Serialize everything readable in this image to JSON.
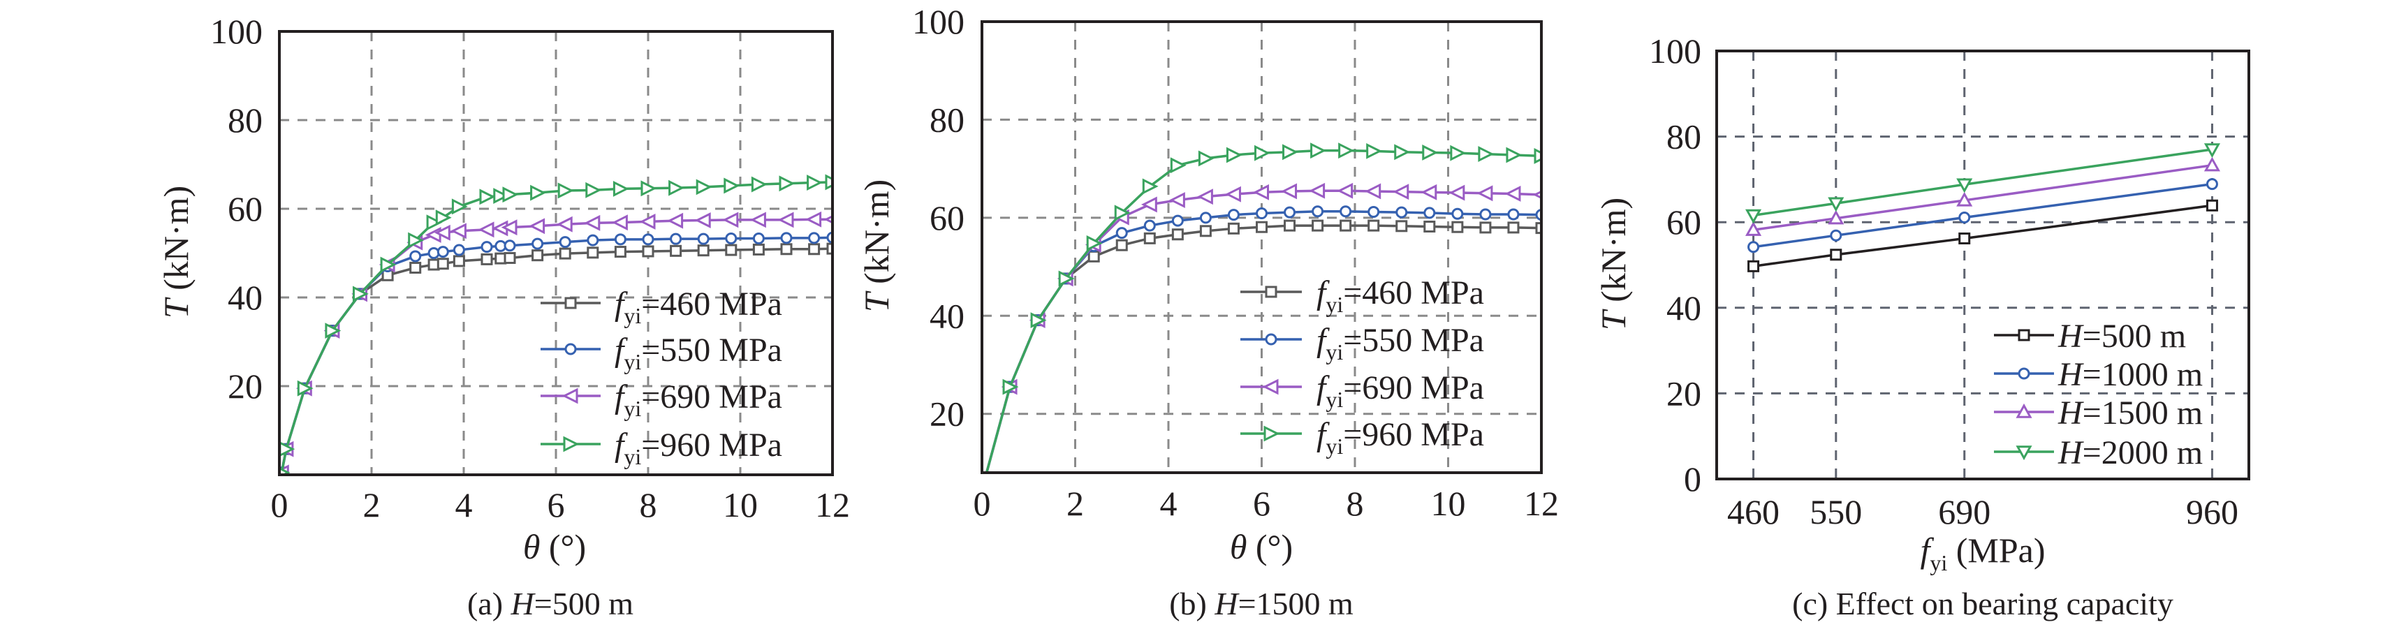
{
  "chart_data": [
    {
      "type": "line",
      "panel": "a",
      "caption": {
        "prefix": "(a) ",
        "var": "H",
        "rest": "=500 m"
      },
      "xlabel": {
        "var": "θ",
        "rest": " (°)"
      },
      "ylabel": {
        "var": "T",
        "rest": " (kN·m)"
      },
      "xlim": [
        0,
        12
      ],
      "ylim": [
        0,
        100
      ],
      "xticks": [
        0,
        2,
        4,
        6,
        8,
        10,
        12
      ],
      "yticks": [
        20,
        40,
        60,
        80,
        100
      ],
      "grid": true,
      "legend_position": "lower-right",
      "x": [
        0.05,
        0.15,
        0.55,
        1.15,
        1.75,
        2.35,
        2.95,
        3.35,
        3.55,
        3.9,
        4.5,
        4.8,
        5.0,
        5.6,
        6.2,
        6.8,
        7.4,
        8.0,
        8.6,
        9.2,
        9.8,
        10.4,
        11.0,
        11.6,
        12
      ],
      "series": [
        {
          "name": {
            "var": "f",
            "sub": "yi",
            "rest": "=460 MPa"
          },
          "color": "#5a5a5a",
          "marker": "square",
          "values": [
            0.5,
            5.8,
            19.5,
            32.5,
            40.8,
            45.0,
            46.7,
            47.4,
            47.6,
            48.2,
            48.6,
            48.8,
            48.9,
            49.5,
            49.9,
            50.1,
            50.3,
            50.4,
            50.5,
            50.6,
            50.7,
            50.8,
            50.9,
            50.9,
            51.0
          ]
        },
        {
          "name": {
            "var": "f",
            "sub": "yi",
            "rest": "=550 MPa"
          },
          "color": "#3561b0",
          "marker": "circle",
          "values": [
            0.5,
            5.8,
            19.5,
            32.5,
            40.8,
            47.0,
            49.3,
            50.0,
            50.3,
            50.7,
            51.4,
            51.6,
            51.7,
            52.1,
            52.5,
            52.9,
            53.1,
            53.1,
            53.2,
            53.2,
            53.3,
            53.3,
            53.4,
            53.4,
            53.5
          ]
        },
        {
          "name": {
            "var": "f",
            "sub": "yi",
            "rest": "=690 MPa"
          },
          "color": "#9a5cc4",
          "marker": "triangle-left",
          "values": [
            0.5,
            5.8,
            19.5,
            32.5,
            40.8,
            47.4,
            52.4,
            54.1,
            54.6,
            55.0,
            55.3,
            55.6,
            55.8,
            56.1,
            56.5,
            56.8,
            56.9,
            57.1,
            57.3,
            57.4,
            57.5,
            57.5,
            57.5,
            57.6,
            57.6
          ]
        },
        {
          "name": {
            "var": "f",
            "sub": "yi",
            "rest": "=960 MPa"
          },
          "color": "#3aa35e",
          "marker": "triangle-right",
          "values": [
            0.5,
            5.8,
            19.5,
            32.5,
            40.8,
            47.4,
            52.9,
            56.9,
            58.0,
            60.5,
            62.7,
            62.9,
            63.2,
            63.6,
            64.1,
            64.2,
            64.5,
            64.6,
            64.7,
            64.9,
            65.2,
            65.5,
            65.7,
            65.9,
            66.0
          ]
        }
      ]
    },
    {
      "type": "line",
      "panel": "b",
      "caption": {
        "prefix": "(b) ",
        "var": "H",
        "rest": "=1500 m"
      },
      "xlabel": {
        "var": "θ",
        "rest": " (°)"
      },
      "ylabel": {
        "var": "T",
        "rest": " (kN·m)"
      },
      "xlim": [
        0,
        12
      ],
      "ylim": [
        8,
        100
      ],
      "xticks": [
        0,
        2,
        4,
        6,
        8,
        10,
        12
      ],
      "yticks": [
        20,
        40,
        60,
        80,
        100
      ],
      "grid": true,
      "legend_position": "lower-right",
      "x": [
        0.1,
        0.6,
        1.2,
        1.8,
        2.4,
        3.0,
        3.6,
        4.2,
        4.8,
        5.4,
        6.0,
        6.6,
        7.2,
        7.8,
        8.4,
        9.0,
        9.6,
        10.2,
        10.8,
        11.4,
        12
      ],
      "series": [
        {
          "name": {
            "var": "f",
            "sub": "yi",
            "rest": "=460 MPa"
          },
          "color": "#5a5a5a",
          "marker": "square",
          "values": [
            8,
            25.5,
            39.1,
            47.6,
            52.1,
            54.4,
            55.8,
            56.6,
            57.3,
            57.8,
            58.1,
            58.4,
            58.4,
            58.4,
            58.4,
            58.3,
            58.2,
            58.1,
            58.0,
            58.0,
            57.9
          ]
        },
        {
          "name": {
            "var": "f",
            "sub": "yi",
            "rest": "=550 MPa"
          },
          "color": "#3561b0",
          "marker": "circle",
          "values": [
            8,
            25.5,
            39.1,
            47.6,
            54.2,
            56.9,
            58.4,
            59.4,
            60.0,
            60.6,
            60.9,
            61.1,
            61.3,
            61.3,
            61.2,
            61.1,
            61.0,
            60.8,
            60.7,
            60.7,
            60.6
          ]
        },
        {
          "name": {
            "var": "f",
            "sub": "yi",
            "rest": "=690 MPa"
          },
          "color": "#9a5cc4",
          "marker": "triangle-left",
          "values": [
            8,
            25.5,
            39.1,
            47.6,
            54.5,
            60.1,
            62.7,
            63.6,
            64.3,
            64.8,
            65.2,
            65.4,
            65.5,
            65.5,
            65.4,
            65.3,
            65.2,
            65.1,
            65.0,
            64.9,
            64.7
          ]
        },
        {
          "name": {
            "var": "f",
            "sub": "yi",
            "rest": "=960 MPa"
          },
          "color": "#3aa35e",
          "marker": "triangle-right",
          "values": [
            8,
            25.5,
            39.1,
            47.6,
            54.8,
            61.0,
            66.4,
            70.7,
            72.1,
            72.8,
            73.2,
            73.4,
            73.7,
            73.7,
            73.6,
            73.4,
            73.3,
            73.2,
            73.0,
            72.8,
            72.6
          ]
        }
      ]
    },
    {
      "type": "line",
      "panel": "c",
      "caption": {
        "prefix": "(c) Effect on bearing capacity",
        "var": "",
        "rest": ""
      },
      "xlabel": {
        "var": "f",
        "sub": "yi",
        "rest": " (MPa)"
      },
      "ylabel": {
        "var": "T",
        "rest": " (kN·m)"
      },
      "xlim": [
        420,
        1000
      ],
      "ylim": [
        0,
        100
      ],
      "xticks": [
        460,
        550,
        690,
        960
      ],
      "yticks": [
        0,
        20,
        40,
        60,
        80,
        100
      ],
      "grid": true,
      "legend_position": "lower-right",
      "x": [
        460,
        550,
        690,
        960
      ],
      "series": [
        {
          "name": {
            "var": "H",
            "rest": "=500 m"
          },
          "color": "#231f20",
          "marker": "square",
          "values": [
            49.7,
            52.4,
            56.2,
            63.9
          ]
        },
        {
          "name": {
            "var": "H",
            "rest": "=1000 m"
          },
          "color": "#3561b0",
          "marker": "circle",
          "values": [
            54.2,
            56.9,
            61.1,
            68.9
          ]
        },
        {
          "name": {
            "var": "H",
            "rest": "=1500 m"
          },
          "color": "#9a5cc4",
          "marker": "triangle-up",
          "values": [
            58.2,
            60.9,
            65.1,
            73.3
          ]
        },
        {
          "name": {
            "var": "H",
            "rest": "=2000 m"
          },
          "color": "#3aa35e",
          "marker": "triangle-down",
          "values": [
            61.6,
            64.4,
            68.8,
            77.0
          ]
        }
      ]
    }
  ]
}
